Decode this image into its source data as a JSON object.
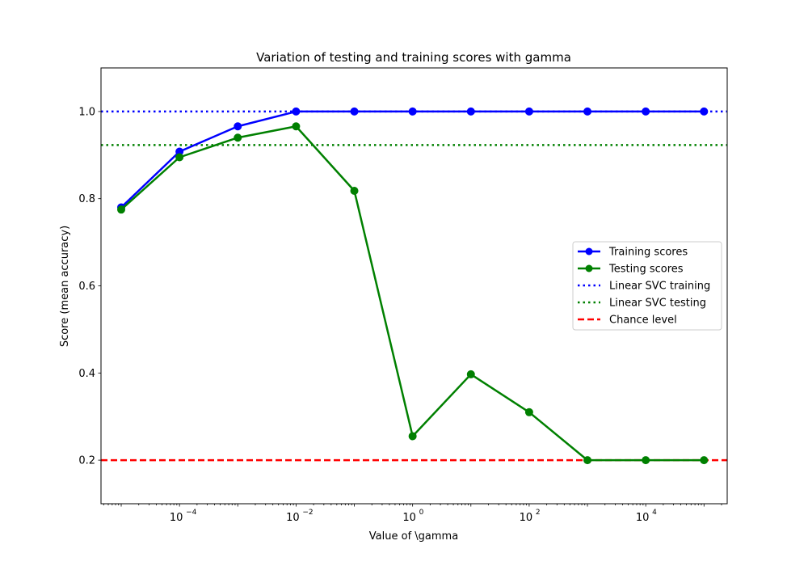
{
  "chart_data": {
    "type": "line",
    "title": "Variation of testing and training scores with gamma",
    "xlabel": "Value of \\gamma",
    "ylabel": "Score (mean accuracy)",
    "xscale": "log",
    "xlim": [
      4.5e-06,
      250000
    ],
    "ylim": [
      0.1,
      1.1
    ],
    "x": [
      1e-05,
      0.0001,
      0.001,
      0.01,
      0.1,
      1,
      10,
      100,
      1000,
      10000,
      100000
    ],
    "x_ticks": [
      {
        "value": 0.0001,
        "base": "10",
        "exp": "−4"
      },
      {
        "value": 0.01,
        "base": "10",
        "exp": "−2"
      },
      {
        "value": 1,
        "base": "10",
        "exp": "0"
      },
      {
        "value": 100,
        "base": "10",
        "exp": "2"
      },
      {
        "value": 10000,
        "base": "10",
        "exp": "4"
      }
    ],
    "y_ticks": [
      {
        "value": 0.2,
        "label": "0.2"
      },
      {
        "value": 0.4,
        "label": "0.4"
      },
      {
        "value": 0.6,
        "label": "0.6"
      },
      {
        "value": 0.8,
        "label": "0.8"
      },
      {
        "value": 1.0,
        "label": "1.0"
      }
    ],
    "series": [
      {
        "name": "Training scores",
        "color": "#0000ff",
        "style": "solid-marker",
        "values": [
          0.78,
          0.908,
          0.966,
          1.0,
          1.0,
          1.0,
          1.0,
          1.0,
          1.0,
          1.0,
          1.0
        ]
      },
      {
        "name": "Testing scores",
        "color": "#008000",
        "style": "solid-marker",
        "values": [
          0.775,
          0.895,
          0.94,
          0.966,
          0.818,
          0.255,
          0.397,
          0.31,
          0.2,
          0.2,
          0.2
        ]
      }
    ],
    "hlines": [
      {
        "name": "Linear SVC training",
        "color": "#0000ff",
        "style": "dotted",
        "value": 1.0
      },
      {
        "name": "Linear SVC testing",
        "color": "#008000",
        "style": "dotted",
        "value": 0.923
      },
      {
        "name": "Chance level",
        "color": "#ff0000",
        "style": "dashed",
        "value": 0.2
      }
    ],
    "legend_position": "center-right",
    "grid": false
  }
}
